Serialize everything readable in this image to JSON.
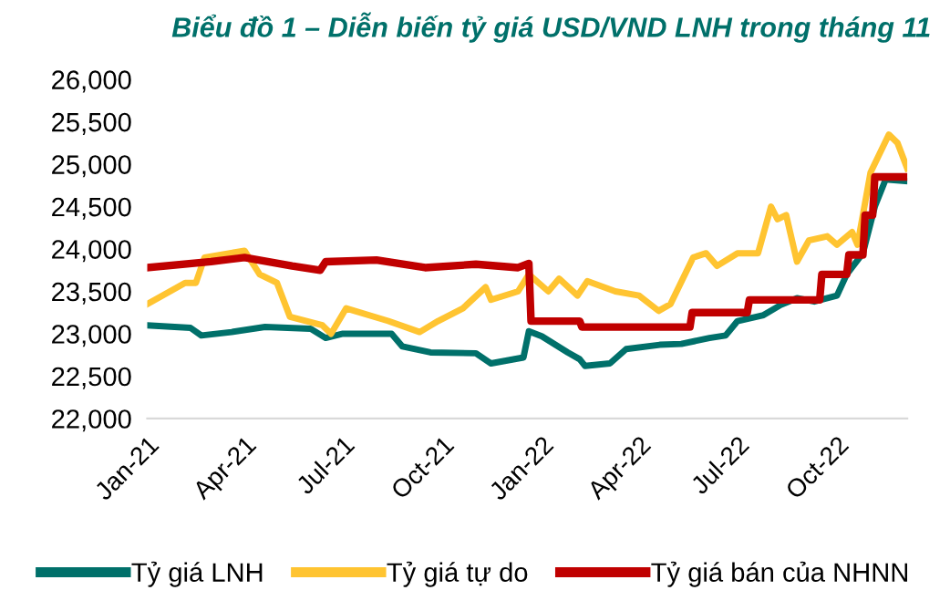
{
  "chart_data": {
    "type": "line",
    "title": "Biểu đồ 1 – Diễn biến tỷ giá USD/VND LNH trong tháng 11",
    "ylim": [
      22000,
      26000
    ],
    "yticks": [
      {
        "value": 22000,
        "label": "22,000"
      },
      {
        "value": 22500,
        "label": "22,500"
      },
      {
        "value": 23000,
        "label": "23,000"
      },
      {
        "value": 23500,
        "label": "23,500"
      },
      {
        "value": 24000,
        "label": "24,000"
      },
      {
        "value": 24500,
        "label": "24,500"
      },
      {
        "value": 25000,
        "label": "25,000"
      },
      {
        "value": 25500,
        "label": "25,500"
      },
      {
        "value": 26000,
        "label": "26,000"
      }
    ],
    "xlim": [
      "2021-01-01",
      "2022-12-05"
    ],
    "xticks": [
      {
        "value": "2021-01-01",
        "label": "Jan-21"
      },
      {
        "value": "2021-04-01",
        "label": "Apr-21"
      },
      {
        "value": "2021-07-01",
        "label": "Jul-21"
      },
      {
        "value": "2021-10-01",
        "label": "Oct-21"
      },
      {
        "value": "2022-01-01",
        "label": "Jan-22"
      },
      {
        "value": "2022-04-01",
        "label": "Apr-22"
      },
      {
        "value": "2022-07-01",
        "label": "Jul-22"
      },
      {
        "value": "2022-10-01",
        "label": "Oct-22"
      }
    ],
    "grid": false,
    "legend": "bottom",
    "marker": "none",
    "line_style": "solid",
    "series": [
      {
        "name": "Tỷ giá LNH",
        "color": "#00706a",
        "x": [
          "2021-01-01",
          "2021-02-10",
          "2021-02-20",
          "2021-03-20",
          "2021-04-20",
          "2021-06-01",
          "2021-06-15",
          "2021-07-01",
          "2021-08-15",
          "2021-08-25",
          "2021-09-20",
          "2021-11-01",
          "2021-11-15",
          "2021-12-15",
          "2021-12-20",
          "2022-01-01",
          "2022-01-25",
          "2022-02-05",
          "2022-02-10",
          "2022-03-05",
          "2022-03-20",
          "2022-04-20",
          "2022-05-10",
          "2022-06-05",
          "2022-06-20",
          "2022-07-01",
          "2022-07-25",
          "2022-08-10",
          "2022-08-25",
          "2022-09-10",
          "2022-10-01",
          "2022-10-10",
          "2022-10-25",
          "2022-11-05",
          "2022-11-15",
          "2022-12-05"
        ],
        "values": [
          23100,
          23070,
          22980,
          23020,
          23080,
          23060,
          22950,
          23000,
          23000,
          22850,
          22780,
          22770,
          22650,
          22720,
          23030,
          22970,
          22780,
          22700,
          22620,
          22650,
          22820,
          22870,
          22880,
          22950,
          22980,
          23150,
          23220,
          23340,
          23420,
          23380,
          23450,
          23700,
          23950,
          24500,
          24820,
          24800
        ]
      },
      {
        "name": "Tỷ giá tự do",
        "color": "#ffc431",
        "x": [
          "2021-01-01",
          "2021-02-05",
          "2021-02-15",
          "2021-02-23",
          "2021-04-01",
          "2021-04-15",
          "2021-05-01",
          "2021-05-13",
          "2021-06-12",
          "2021-06-20",
          "2021-07-04",
          "2021-08-12",
          "2021-09-10",
          "2021-09-27",
          "2021-10-20",
          "2021-11-10",
          "2021-11-15",
          "2021-12-10",
          "2021-12-20",
          "2022-01-07",
          "2022-01-17",
          "2022-02-03",
          "2022-02-12",
          "2022-03-10",
          "2022-04-01",
          "2022-04-19",
          "2022-04-30",
          "2022-05-21",
          "2022-06-02",
          "2022-06-12",
          "2022-07-01",
          "2022-07-20",
          "2022-08-01",
          "2022-08-07",
          "2022-08-15",
          "2022-08-25",
          "2022-09-05",
          "2022-09-22",
          "2022-10-01",
          "2022-10-15",
          "2022-10-20",
          "2022-11-01",
          "2022-11-18",
          "2022-11-26",
          "2022-12-05"
        ],
        "values": [
          23350,
          23600,
          23600,
          23900,
          23980,
          23700,
          23600,
          23200,
          23100,
          23000,
          23300,
          23150,
          23020,
          23150,
          23300,
          23550,
          23400,
          23500,
          23700,
          23500,
          23650,
          23450,
          23620,
          23500,
          23450,
          23270,
          23350,
          23900,
          23950,
          23800,
          23950,
          23950,
          24500,
          24350,
          24400,
          23850,
          24100,
          24150,
          24050,
          24200,
          24050,
          24900,
          25350,
          25250,
          24950
        ]
      },
      {
        "name": "Tỷ giá bán của NHNN",
        "color": "#c00000",
        "x": [
          "2021-01-01",
          "2021-03-01",
          "2021-04-01",
          "2021-05-15",
          "2021-06-10",
          "2021-06-15",
          "2021-08-01",
          "2021-09-15",
          "2021-11-01",
          "2021-12-10",
          "2021-12-20",
          "2021-12-22",
          "2022-02-05",
          "2022-02-07",
          "2022-05-18",
          "2022-05-20",
          "2022-07-10",
          "2022-07-12",
          "2022-09-15",
          "2022-09-17",
          "2022-10-10",
          "2022-10-12",
          "2022-10-25",
          "2022-10-27",
          "2022-11-03",
          "2022-11-05",
          "2022-12-05"
        ],
        "values": [
          23780,
          23850,
          23900,
          23800,
          23750,
          23850,
          23870,
          23780,
          23820,
          23780,
          23830,
          23150,
          23150,
          23080,
          23080,
          23250,
          23250,
          23400,
          23400,
          23700,
          23700,
          23930,
          23930,
          24400,
          24400,
          24850,
          24850
        ]
      }
    ]
  }
}
